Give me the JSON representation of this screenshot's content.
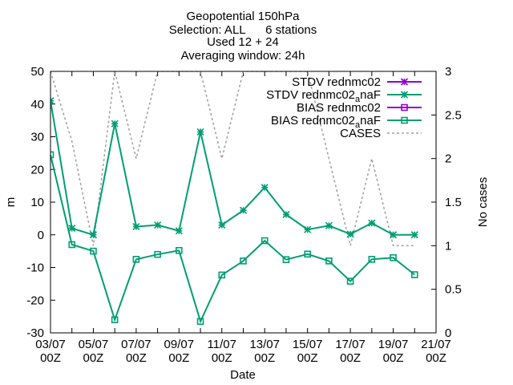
{
  "chart_data": {
    "type": "line",
    "title_lines": [
      "Geopotential 150hPa",
      "Selection: ALL      6 stations",
      "Used 12 + 24",
      "Averaging window: 24h"
    ],
    "xlabel": "Date",
    "ylabel": "m",
    "y2label": "No cases",
    "x_ticks": [
      {
        "day": "03/07",
        "hour": "00Z"
      },
      {
        "day": "05/07",
        "hour": "00Z"
      },
      {
        "day": "07/07",
        "hour": "00Z"
      },
      {
        "day": "09/07",
        "hour": "00Z"
      },
      {
        "day": "11/07",
        "hour": "00Z"
      },
      {
        "day": "13/07",
        "hour": "00Z"
      },
      {
        "day": "15/07",
        "hour": "00Z"
      },
      {
        "day": "17/07",
        "hour": "00Z"
      },
      {
        "day": "19/07",
        "hour": "00Z"
      },
      {
        "day": "21/07",
        "hour": "00Z"
      }
    ],
    "xlim": [
      "03/07 00Z",
      "21/07 00Z"
    ],
    "ylim": [
      -30,
      50
    ],
    "y_ticks": [
      -30,
      -20,
      -10,
      0,
      10,
      20,
      30,
      40,
      50
    ],
    "y2lim": [
      0,
      3
    ],
    "y2_ticks": [
      "0",
      "0.5",
      "1",
      "1.5",
      "2",
      "2.5",
      "3"
    ],
    "legend_position": "top-right",
    "series": [
      {
        "name": "STDV rednmc02",
        "axis": "y",
        "color": "#9400d3",
        "marker": "star",
        "dash": "",
        "x": [],
        "values": []
      },
      {
        "name": "STDV rednmc02_anaF",
        "legend_main": "STDV rednmc02",
        "legend_sub": "a",
        "legend_tail": "naF",
        "axis": "y",
        "color": "#009e73",
        "marker": "star",
        "dash": "",
        "x": [
          "03/07 00Z",
          "04/07 00Z",
          "05/07 00Z",
          "06/07 00Z",
          "07/07 00Z",
          "08/07 00Z",
          "09/07 00Z",
          "10/07 00Z",
          "11/07 00Z",
          "12/07 00Z",
          "13/07 00Z",
          "14/07 00Z",
          "15/07 00Z",
          "16/07 00Z",
          "17/07 00Z",
          "18/07 00Z",
          "19/07 00Z",
          "20/07 00Z"
        ],
        "values": [
          41,
          2,
          0,
          34,
          2.5,
          3,
          1.2,
          31.5,
          3,
          7.5,
          14.5,
          6.2,
          1.6,
          2.8,
          0.2,
          3.6,
          0,
          0
        ]
      },
      {
        "name": "BIAS rednmc02",
        "axis": "y",
        "color": "#9400d3",
        "marker": "square",
        "dash": "",
        "x": [],
        "values": []
      },
      {
        "name": "BIAS rednmc02_anaF",
        "legend_main": "BIAS rednmc02",
        "legend_sub": "a",
        "legend_tail": "naF",
        "axis": "y",
        "color": "#009e73",
        "marker": "square",
        "dash": "",
        "x": [
          "03/07 00Z",
          "04/07 00Z",
          "05/07 00Z",
          "06/07 00Z",
          "07/07 00Z",
          "08/07 00Z",
          "09/07 00Z",
          "10/07 00Z",
          "11/07 00Z",
          "12/07 00Z",
          "13/07 00Z",
          "14/07 00Z",
          "15/07 00Z",
          "16/07 00Z",
          "17/07 00Z",
          "18/07 00Z",
          "19/07 00Z",
          "20/07 00Z"
        ],
        "values": [
          24.5,
          -3,
          -5,
          -26,
          -7.5,
          -6,
          -4.8,
          -26.5,
          -12.3,
          -8,
          -1.8,
          -7.6,
          -5.9,
          -8,
          -14.2,
          -7.5,
          -7,
          -12.2
        ]
      },
      {
        "name": "CASES",
        "axis": "y2",
        "color": "#a0a0a0",
        "marker": "none",
        "dash": "3,3",
        "x": [
          "03/07 00Z",
          "04/07 00Z",
          "05/07 00Z",
          "06/07 00Z",
          "07/07 00Z",
          "08/07 00Z",
          "09/07 00Z",
          "10/07 00Z",
          "11/07 00Z",
          "12/07 00Z",
          "13/07 00Z",
          "14/07 00Z",
          "15/07 00Z",
          "16/07 00Z",
          "17/07 00Z",
          "18/07 00Z",
          "19/07 00Z",
          "20/07 00Z"
        ],
        "values": [
          3,
          2.2,
          1,
          3,
          2,
          3,
          3,
          3,
          2,
          3,
          3,
          3,
          3,
          2,
          1,
          2,
          1,
          1
        ]
      }
    ]
  }
}
